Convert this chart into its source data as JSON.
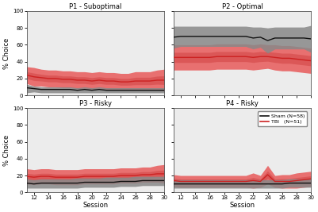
{
  "sessions": [
    11,
    12,
    13,
    14,
    15,
    16,
    17,
    18,
    19,
    20,
    21,
    22,
    23,
    24,
    25,
    26,
    27,
    28,
    29,
    30
  ],
  "titles": [
    "P1 - Suboptimal",
    "P2 - Optimal",
    "P3 - Risky",
    "P4 - Risky"
  ],
  "xlabel": "Session",
  "ylabel": "% Choice",
  "ylim": [
    0,
    100
  ],
  "xticks": [
    12,
    14,
    16,
    18,
    20,
    22,
    24,
    26,
    28,
    30
  ],
  "yticks": [
    0,
    20,
    40,
    60,
    80,
    100
  ],
  "legend_labels": [
    "Sham (N=58)",
    "TBI   (N=51)"
  ],
  "sham_color": "#111111",
  "tbi_color": "#cc2222",
  "sham_fill_color": "#888888",
  "tbi_fill_color": "#e87070",
  "panel_bg": "#ececec",
  "p1_sham_mean": [
    9,
    8,
    7,
    7,
    7,
    7,
    7,
    6,
    7,
    6,
    7,
    6,
    6,
    6,
    6,
    6,
    6,
    6,
    6,
    6
  ],
  "p1_sham_upper": [
    13,
    11,
    10,
    10,
    10,
    10,
    10,
    9,
    10,
    9,
    10,
    9,
    9,
    9,
    9,
    9,
    9,
    9,
    9,
    9
  ],
  "p1_sham_lower": [
    3,
    4,
    3,
    3,
    3,
    3,
    3,
    3,
    3,
    3,
    3,
    3,
    3,
    3,
    3,
    3,
    3,
    3,
    3,
    3
  ],
  "p1_tbi_mean": [
    24,
    22,
    21,
    20,
    20,
    19,
    19,
    18,
    18,
    17,
    18,
    17,
    17,
    16,
    16,
    17,
    17,
    17,
    18,
    18
  ],
  "p1_tbi_upper": [
    34,
    33,
    31,
    30,
    30,
    29,
    29,
    28,
    28,
    27,
    28,
    27,
    27,
    26,
    26,
    28,
    28,
    28,
    30,
    31
  ],
  "p1_tbi_lower": [
    14,
    11,
    11,
    10,
    10,
    9,
    9,
    8,
    8,
    7,
    8,
    7,
    7,
    6,
    6,
    6,
    6,
    6,
    6,
    5
  ],
  "p2_sham_mean": [
    69,
    70,
    70,
    70,
    70,
    70,
    70,
    70,
    70,
    70,
    70,
    68,
    69,
    65,
    68,
    68,
    68,
    68,
    68,
    67
  ],
  "p2_sham_upper": [
    82,
    82,
    82,
    82,
    82,
    82,
    82,
    82,
    82,
    82,
    82,
    81,
    81,
    80,
    81,
    81,
    81,
    81,
    81,
    83
  ],
  "p2_sham_lower": [
    56,
    58,
    58,
    58,
    58,
    58,
    58,
    58,
    58,
    58,
    58,
    55,
    57,
    50,
    55,
    55,
    55,
    55,
    55,
    51
  ],
  "p2_tbi_mean": [
    45,
    45,
    45,
    45,
    45,
    45,
    46,
    46,
    46,
    46,
    46,
    45,
    46,
    46,
    45,
    44,
    44,
    43,
    42,
    41
  ],
  "p2_tbi_upper": [
    60,
    60,
    60,
    60,
    60,
    60,
    61,
    61,
    61,
    61,
    61,
    60,
    61,
    60,
    60,
    59,
    59,
    58,
    57,
    56
  ],
  "p2_tbi_lower": [
    30,
    30,
    30,
    30,
    30,
    30,
    31,
    31,
    31,
    31,
    31,
    30,
    31,
    32,
    30,
    29,
    29,
    28,
    27,
    26
  ],
  "p3_sham_mean": [
    11,
    10,
    11,
    11,
    11,
    11,
    11,
    11,
    12,
    12,
    12,
    12,
    12,
    13,
    13,
    13,
    14,
    14,
    14,
    14
  ],
  "p3_sham_upper": [
    16,
    15,
    16,
    16,
    16,
    16,
    16,
    17,
    17,
    17,
    17,
    18,
    18,
    18,
    18,
    19,
    19,
    19,
    19,
    19
  ],
  "p3_sham_lower": [
    5,
    5,
    5,
    5,
    5,
    5,
    5,
    5,
    6,
    6,
    6,
    6,
    6,
    7,
    7,
    7,
    8,
    8,
    8,
    8
  ],
  "p3_tbi_mean": [
    19,
    18,
    19,
    19,
    18,
    18,
    18,
    18,
    19,
    19,
    19,
    19,
    19,
    20,
    20,
    20,
    21,
    21,
    22,
    22
  ],
  "p3_tbi_upper": [
    28,
    27,
    28,
    28,
    27,
    27,
    27,
    27,
    28,
    28,
    28,
    28,
    28,
    29,
    29,
    29,
    30,
    30,
    32,
    33
  ],
  "p3_tbi_lower": [
    10,
    9,
    10,
    10,
    9,
    9,
    9,
    9,
    10,
    10,
    10,
    10,
    10,
    11,
    11,
    11,
    12,
    12,
    12,
    11
  ],
  "p4_sham_mean": [
    10,
    10,
    10,
    10,
    10,
    10,
    10,
    10,
    10,
    10,
    10,
    10,
    10,
    10,
    10,
    10,
    11,
    11,
    11,
    11
  ],
  "p4_sham_upper": [
    15,
    15,
    15,
    15,
    15,
    15,
    15,
    15,
    15,
    15,
    15,
    15,
    15,
    15,
    15,
    15,
    16,
    16,
    16,
    16
  ],
  "p4_sham_lower": [
    5,
    5,
    5,
    5,
    5,
    5,
    5,
    5,
    5,
    5,
    5,
    5,
    5,
    5,
    5,
    5,
    6,
    6,
    6,
    6
  ],
  "p4_tbi_mean": [
    14,
    13,
    13,
    13,
    13,
    13,
    13,
    13,
    13,
    13,
    13,
    14,
    13,
    21,
    13,
    13,
    13,
    14,
    15,
    16
  ],
  "p4_tbi_upper": [
    21,
    20,
    20,
    20,
    20,
    20,
    20,
    20,
    20,
    20,
    20,
    23,
    20,
    32,
    20,
    21,
    21,
    23,
    24,
    25
  ],
  "p4_tbi_lower": [
    7,
    6,
    6,
    6,
    6,
    6,
    6,
    6,
    6,
    6,
    6,
    5,
    6,
    10,
    6,
    5,
    5,
    5,
    6,
    7
  ]
}
